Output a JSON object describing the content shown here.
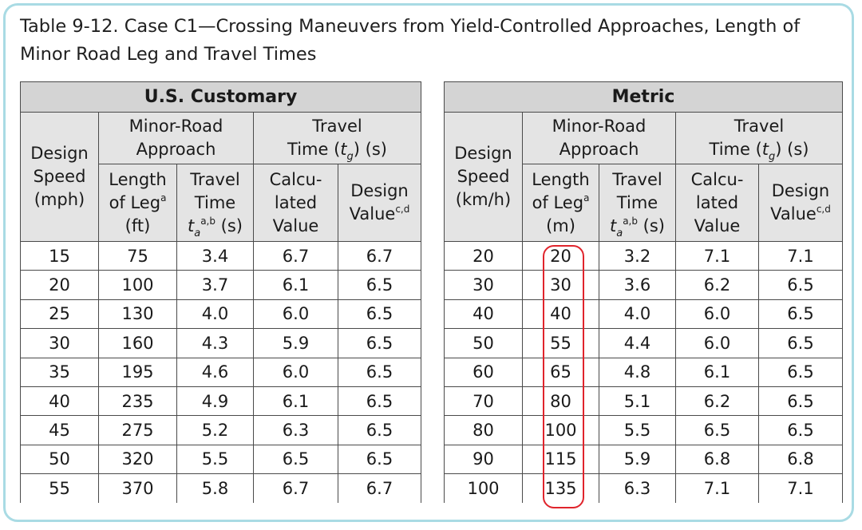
{
  "caption": "Table 9-12. Case C1—Crossing Maneuvers from Yield-Controlled Approaches, Length of Minor Road Leg and Travel Times",
  "highlight_color": "#e0242c",
  "frame_color": "#a9dbe4",
  "us": {
    "system": "U.S. Customary",
    "design_speed": [
      "Design",
      "Speed",
      "(mph)"
    ],
    "minor_road": [
      "Minor-Road",
      "Approach"
    ],
    "travel_time": [
      "Travel",
      "Time (",
      "g",
      ") (s)"
    ],
    "length_leg": [
      "Length",
      "of Leg",
      "a",
      "(ft)"
    ],
    "travel_time_col": [
      "Travel",
      "Time",
      "t",
      "a",
      "a,b",
      " (s)"
    ],
    "calculated": [
      "Calcu-",
      "lated",
      "Value"
    ],
    "design_value": [
      "Design",
      "Value",
      "c,d"
    ],
    "rows": [
      [
        "15",
        "75",
        "3.4",
        "6.7",
        "6.7"
      ],
      [
        "20",
        "100",
        "3.7",
        "6.1",
        "6.5"
      ],
      [
        "25",
        "130",
        "4.0",
        "6.0",
        "6.5"
      ],
      [
        "30",
        "160",
        "4.3",
        "5.9",
        "6.5"
      ],
      [
        "35",
        "195",
        "4.6",
        "6.0",
        "6.5"
      ],
      [
        "40",
        "235",
        "4.9",
        "6.1",
        "6.5"
      ],
      [
        "45",
        "275",
        "5.2",
        "6.3",
        "6.5"
      ],
      [
        "50",
        "320",
        "5.5",
        "6.5",
        "6.5"
      ],
      [
        "55",
        "370",
        "5.8",
        "6.7",
        "6.7"
      ]
    ]
  },
  "metric": {
    "system": "Metric",
    "design_speed": [
      "Design",
      "Speed",
      "(km/h)"
    ],
    "minor_road": [
      "Minor-Road",
      "Approach"
    ],
    "travel_time": [
      "Travel",
      "Time (",
      "g",
      ") (s)"
    ],
    "length_leg": [
      "Length",
      "of Leg",
      "a",
      "(m)"
    ],
    "travel_time_col": [
      "Travel",
      "Time",
      "t",
      "a",
      "a,b",
      " (s)"
    ],
    "calculated": [
      "Calcu-",
      "lated",
      "Value"
    ],
    "design_value": [
      "Design",
      "Value",
      "c,d"
    ],
    "rows": [
      [
        "20",
        "20",
        "3.2",
        "7.1",
        "7.1"
      ],
      [
        "30",
        "30",
        "3.6",
        "6.2",
        "6.5"
      ],
      [
        "40",
        "40",
        "4.0",
        "6.0",
        "6.5"
      ],
      [
        "50",
        "55",
        "4.4",
        "6.0",
        "6.5"
      ],
      [
        "60",
        "65",
        "4.8",
        "6.1",
        "6.5"
      ],
      [
        "70",
        "80",
        "5.1",
        "6.2",
        "6.5"
      ],
      [
        "80",
        "100",
        "5.5",
        "6.5",
        "6.5"
      ],
      [
        "90",
        "115",
        "5.9",
        "6.8",
        "6.8"
      ],
      [
        "100",
        "135",
        "6.3",
        "7.1",
        "7.1"
      ]
    ]
  }
}
